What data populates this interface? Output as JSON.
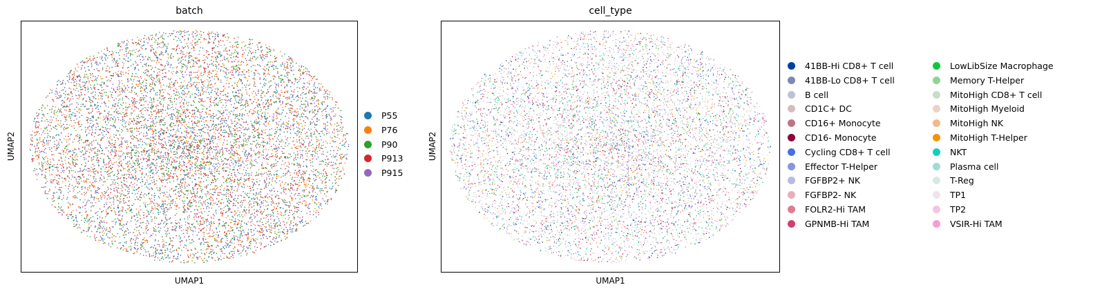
{
  "chart_data": [
    {
      "type": "scatter",
      "title": "batch",
      "xlabel": "UMAP1",
      "ylabel": "UMAP2",
      "grid": false,
      "legend_placement": "right",
      "series": [
        {
          "name": "P55",
          "color": "#1f77b4"
        },
        {
          "name": "P76",
          "color": "#ff7f0e"
        },
        {
          "name": "P90",
          "color": "#2ca02c"
        },
        {
          "name": "P913",
          "color": "#d62728"
        },
        {
          "name": "P915",
          "color": "#9467bd"
        }
      ]
    },
    {
      "type": "scatter",
      "title": "cell_type",
      "xlabel": "UMAP1",
      "ylabel": "UMAP2",
      "grid": false,
      "legend_placement": "right",
      "series": [
        {
          "name": "41BB-Hi CD8+ T cell",
          "color": "#023fa5"
        },
        {
          "name": "41BB-Lo CD8+ T cell",
          "color": "#7d87b9"
        },
        {
          "name": "B cell",
          "color": "#bec1d4"
        },
        {
          "name": "CD1C+ DC",
          "color": "#d6bcc0"
        },
        {
          "name": "CD16+ Monocyte",
          "color": "#bb7784"
        },
        {
          "name": "CD16- Monocyte",
          "color": "#8e063b"
        },
        {
          "name": "Cycling CD8+ T cell",
          "color": "#4a6fe3"
        },
        {
          "name": "Effector T-Helper",
          "color": "#8595e1"
        },
        {
          "name": "FGFBP2+ NK",
          "color": "#b5bbe3"
        },
        {
          "name": "FGFBP2- NK",
          "color": "#e6afb9"
        },
        {
          "name": "FOLR2-Hi TAM",
          "color": "#e07b91"
        },
        {
          "name": "GPNMB-Hi TAM",
          "color": "#d33f6a"
        },
        {
          "name": "LowLibSize Macrophage",
          "color": "#11c638"
        },
        {
          "name": "Memory T-Helper",
          "color": "#8dd593"
        },
        {
          "name": "MitoHigh CD8+ T cell",
          "color": "#c6dec7"
        },
        {
          "name": "MitoHigh Myeloid",
          "color": "#ead3c6"
        },
        {
          "name": "MitoHigh NK",
          "color": "#f0b98d"
        },
        {
          "name": "MitoHigh T-Helper",
          "color": "#ef9708"
        },
        {
          "name": "NKT",
          "color": "#0fcfc0"
        },
        {
          "name": "Plasma cell",
          "color": "#9cded6"
        },
        {
          "name": "T-Reg",
          "color": "#d5eae7"
        },
        {
          "name": "TP1",
          "color": "#f3e1eb"
        },
        {
          "name": "TP2",
          "color": "#f6c4e1"
        },
        {
          "name": "VSIR-Hi TAM",
          "color": "#f79cd4"
        }
      ]
    }
  ]
}
